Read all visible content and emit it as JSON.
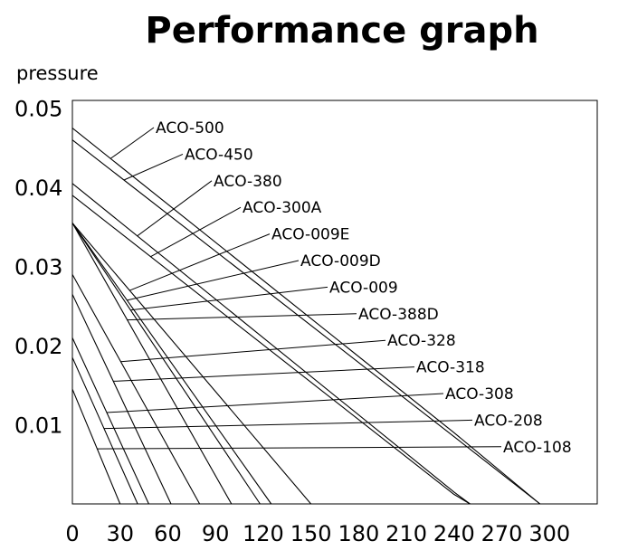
{
  "chart_data": {
    "type": "line",
    "title": "Performance graph",
    "ylabel": "pressure",
    "xlabel": "",
    "xlim": [
      0,
      330
    ],
    "ylim": [
      0,
      0.051
    ],
    "x_ticks": [
      "0",
      "30",
      "60",
      "90",
      "120",
      "150",
      "180",
      "210",
      "240",
      "270",
      "300"
    ],
    "y_ticks": [
      "0.01",
      "0.02",
      "0.03",
      "0.04",
      "0.05"
    ],
    "grid": false,
    "series": [
      {
        "name": "ACO-500",
        "x": [
          0,
          240,
          294
        ],
        "y": [
          0.0475,
          0.009,
          0
        ]
      },
      {
        "name": "ACO-450",
        "x": [
          0,
          240,
          294
        ],
        "y": [
          0.046,
          0.0085,
          0
        ]
      },
      {
        "name": "ACO-380",
        "x": [
          0,
          240,
          250
        ],
        "y": [
          0.0405,
          0.0015,
          0
        ]
      },
      {
        "name": "ACO-300A",
        "x": [
          0,
          240,
          250
        ],
        "y": [
          0.039,
          0.0012,
          0
        ]
      },
      {
        "name": "ACO-009E",
        "x": [
          0,
          150
        ],
        "y": [
          0.0355,
          0
        ]
      },
      {
        "name": "ACO-009D",
        "x": [
          0,
          125
        ],
        "y": [
          0.0355,
          0
        ]
      },
      {
        "name": "ACO-009",
        "x": [
          0,
          118
        ],
        "y": [
          0.0355,
          0
        ]
      },
      {
        "name": "ACO-388D",
        "x": [
          0,
          100
        ],
        "y": [
          0.0355,
          0
        ]
      },
      {
        "name": "ACO-328",
        "x": [
          0,
          80
        ],
        "y": [
          0.029,
          0
        ]
      },
      {
        "name": "ACO-318",
        "x": [
          0,
          62
        ],
        "y": [
          0.0265,
          0
        ]
      },
      {
        "name": "ACO-308",
        "x": [
          0,
          48
        ],
        "y": [
          0.021,
          0
        ]
      },
      {
        "name": "ACO-208",
        "x": [
          0,
          41
        ],
        "y": [
          0.0185,
          0
        ]
      },
      {
        "name": "ACO-108",
        "x": [
          0,
          30
        ],
        "y": [
          0.0145,
          0
        ]
      }
    ]
  }
}
